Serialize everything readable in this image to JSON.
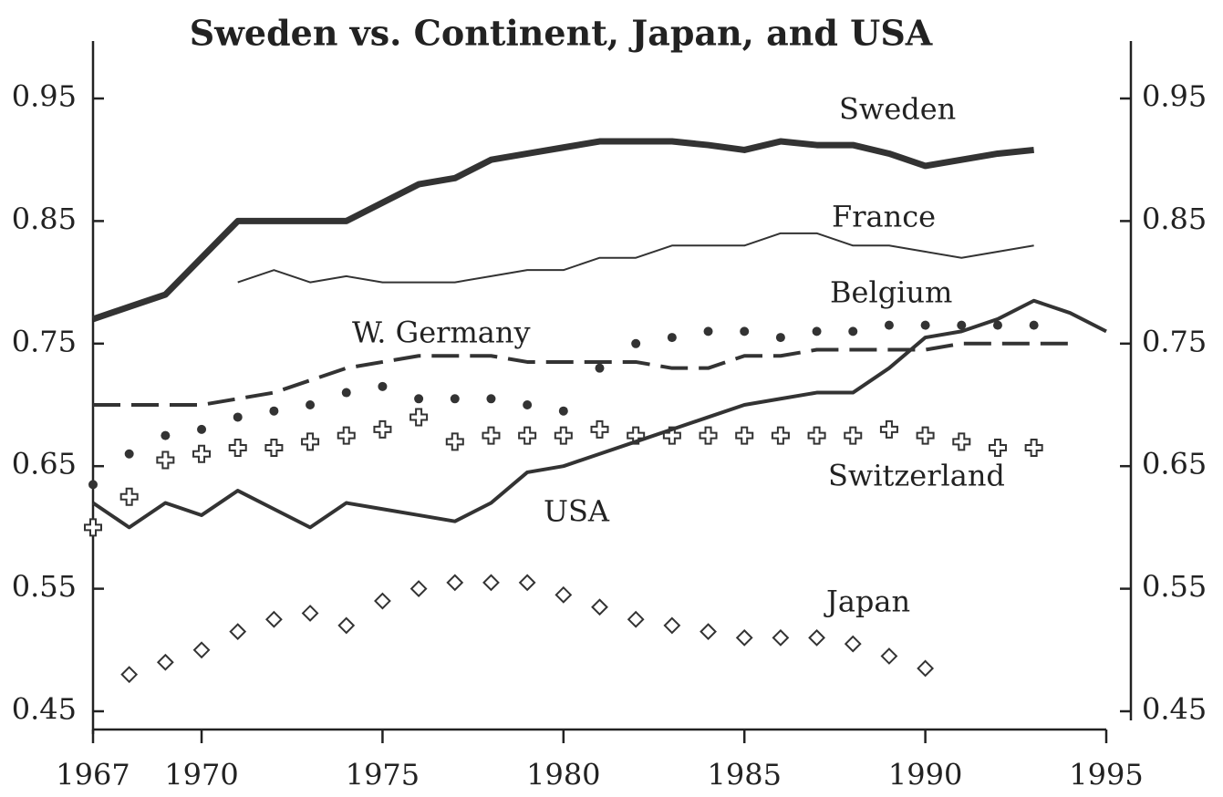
{
  "chart_data": {
    "type": "line",
    "title": "Sweden vs. Continent, Japan, and USA",
    "xlim": [
      1967,
      1995
    ],
    "xticks": [
      1967,
      1970,
      1975,
      1980,
      1985,
      1990,
      1995
    ],
    "ylim": [
      0.45,
      0.95
    ],
    "yticks": [
      0.45,
      0.55,
      0.65,
      0.75,
      0.85,
      0.95
    ],
    "series": [
      {
        "name": "Sweden",
        "color": "#333333",
        "style": "line",
        "width": 7,
        "x": [
          1967,
          1968,
          1969,
          1970,
          1971,
          1972,
          1973,
          1974,
          1975,
          1976,
          1977,
          1978,
          1979,
          1980,
          1981,
          1982,
          1983,
          1984,
          1985,
          1986,
          1987,
          1988,
          1989,
          1990,
          1991,
          1992,
          1993
        ],
        "values": [
          0.77,
          0.78,
          0.79,
          0.82,
          0.85,
          0.85,
          0.85,
          0.85,
          0.865,
          0.88,
          0.885,
          0.9,
          0.905,
          0.91,
          0.915,
          0.915,
          0.915,
          0.912,
          0.908,
          0.915,
          0.912,
          0.912,
          0.905,
          0.895,
          0.9,
          0.905,
          0.908
        ]
      },
      {
        "name": "France",
        "color": "#333333",
        "style": "line",
        "width": 2,
        "x": [
          1971,
          1972,
          1973,
          1974,
          1975,
          1976,
          1977,
          1978,
          1979,
          1980,
          1981,
          1982,
          1983,
          1984,
          1985,
          1986,
          1987,
          1988,
          1989,
          1990,
          1991,
          1992,
          1993
        ],
        "values": [
          0.8,
          0.81,
          0.8,
          0.805,
          0.8,
          0.8,
          0.8,
          0.805,
          0.81,
          0.81,
          0.82,
          0.82,
          0.83,
          0.83,
          0.83,
          0.84,
          0.84,
          0.83,
          0.83,
          0.825,
          0.82,
          0.825,
          0.83
        ]
      },
      {
        "name": "Belgium",
        "color": "#333333",
        "style": "dots",
        "width": 5,
        "x": [
          1967,
          1968,
          1969,
          1970,
          1971,
          1972,
          1973,
          1974,
          1975,
          1976,
          1977,
          1978,
          1979,
          1980,
          1981,
          1982,
          1983,
          1984,
          1985,
          1986,
          1987,
          1988,
          1989,
          1990,
          1991,
          1992,
          1993
        ],
        "values": [
          0.635,
          0.66,
          0.675,
          0.68,
          0.69,
          0.695,
          0.7,
          0.71,
          0.715,
          0.705,
          0.705,
          0.705,
          0.7,
          0.695,
          0.73,
          0.75,
          0.755,
          0.76,
          0.76,
          0.755,
          0.76,
          0.76,
          0.765,
          0.765,
          0.765,
          0.765,
          0.765
        ]
      },
      {
        "name": "W. Germany",
        "color": "#333333",
        "style": "dash",
        "width": 4,
        "x": [
          1967,
          1968,
          1969,
          1970,
          1971,
          1972,
          1973,
          1974,
          1975,
          1976,
          1977,
          1978,
          1979,
          1980,
          1981,
          1982,
          1983,
          1984,
          1985,
          1986,
          1987,
          1988,
          1989,
          1990,
          1991,
          1992,
          1993,
          1994
        ],
        "values": [
          0.7,
          0.7,
          0.7,
          0.7,
          0.705,
          0.71,
          0.72,
          0.73,
          0.735,
          0.74,
          0.74,
          0.74,
          0.735,
          0.735,
          0.735,
          0.735,
          0.73,
          0.73,
          0.74,
          0.74,
          0.745,
          0.745,
          0.745,
          0.745,
          0.75,
          0.75,
          0.75,
          0.75
        ]
      },
      {
        "name": "Switzerland",
        "color": "#333333",
        "style": "cross",
        "width": 2,
        "x": [
          1967,
          1968,
          1969,
          1970,
          1971,
          1972,
          1973,
          1974,
          1975,
          1976,
          1977,
          1978,
          1979,
          1980,
          1981,
          1982,
          1983,
          1984,
          1985,
          1986,
          1987,
          1988,
          1989,
          1990,
          1991,
          1992,
          1993
        ],
        "values": [
          0.6,
          0.625,
          0.655,
          0.66,
          0.665,
          0.665,
          0.67,
          0.675,
          0.68,
          0.69,
          0.67,
          0.675,
          0.675,
          0.675,
          0.68,
          0.675,
          0.675,
          0.675,
          0.675,
          0.675,
          0.675,
          0.675,
          0.68,
          0.675,
          0.67,
          0.665,
          0.665
        ]
      },
      {
        "name": "USA",
        "color": "#333333",
        "style": "line",
        "width": 4,
        "x": [
          1967,
          1968,
          1969,
          1970,
          1971,
          1972,
          1973,
          1974,
          1975,
          1976,
          1977,
          1978,
          1979,
          1980,
          1981,
          1982,
          1983,
          1984,
          1985,
          1986,
          1987,
          1988,
          1989,
          1990,
          1991,
          1992,
          1993,
          1994,
          1995
        ],
        "values": [
          0.62,
          0.6,
          0.62,
          0.61,
          0.63,
          0.615,
          0.6,
          0.62,
          0.615,
          0.61,
          0.605,
          0.62,
          0.645,
          0.65,
          0.66,
          0.67,
          0.68,
          0.69,
          0.7,
          0.705,
          0.71,
          0.71,
          0.73,
          0.755,
          0.76,
          0.77,
          0.785,
          0.775,
          0.76
        ]
      },
      {
        "name": "Japan",
        "color": "#333333",
        "style": "diamond",
        "width": 2,
        "x": [
          1968,
          1969,
          1970,
          1971,
          1972,
          1973,
          1974,
          1975,
          1976,
          1977,
          1978,
          1979,
          1980,
          1981,
          1982,
          1983,
          1984,
          1985,
          1986,
          1987,
          1988,
          1989,
          1990
        ],
        "values": [
          0.48,
          0.49,
          0.5,
          0.515,
          0.525,
          0.53,
          0.52,
          0.54,
          0.55,
          0.555,
          0.555,
          0.555,
          0.545,
          0.535,
          0.525,
          0.52,
          0.515,
          0.51,
          0.51,
          0.51,
          0.505,
          0.495,
          0.485
        ]
      }
    ]
  }
}
